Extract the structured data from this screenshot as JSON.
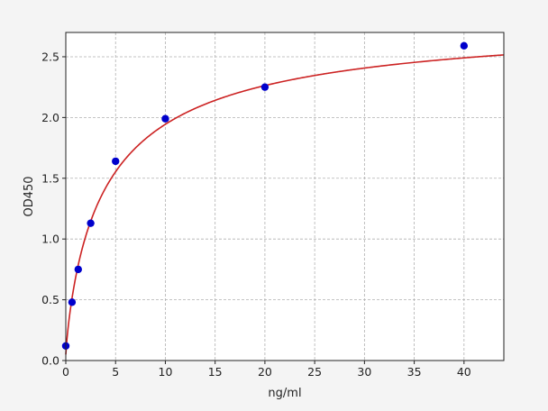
{
  "chart_data": {
    "type": "scatter",
    "xlabel": "ng/ml",
    "ylabel": "OD450",
    "xlim": [
      0,
      44
    ],
    "ylim": [
      0,
      2.7
    ],
    "xticks": [
      0,
      5,
      10,
      15,
      20,
      25,
      30,
      35,
      40
    ],
    "yticks": [
      0.0,
      0.5,
      1.0,
      1.5,
      2.0,
      2.5
    ],
    "xtick_labels": [
      "0",
      "5",
      "10",
      "15",
      "20",
      "25",
      "30",
      "35",
      "40"
    ],
    "ytick_labels": [
      "0.0",
      "0.5",
      "1.0",
      "1.5",
      "2.0",
      "2.5"
    ],
    "grid": true,
    "points": {
      "x": [
        0,
        0.625,
        1.25,
        2.5,
        5,
        10,
        20,
        40
      ],
      "y": [
        0.12,
        0.48,
        0.75,
        1.13,
        1.64,
        1.99,
        2.25,
        2.59
      ],
      "color": "#0000cc"
    },
    "fit_curve": {
      "model": "4PL",
      "A": 0.05,
      "B": 0.85,
      "C": 4.2,
      "D": 2.85,
      "color": "#cc2222"
    }
  }
}
